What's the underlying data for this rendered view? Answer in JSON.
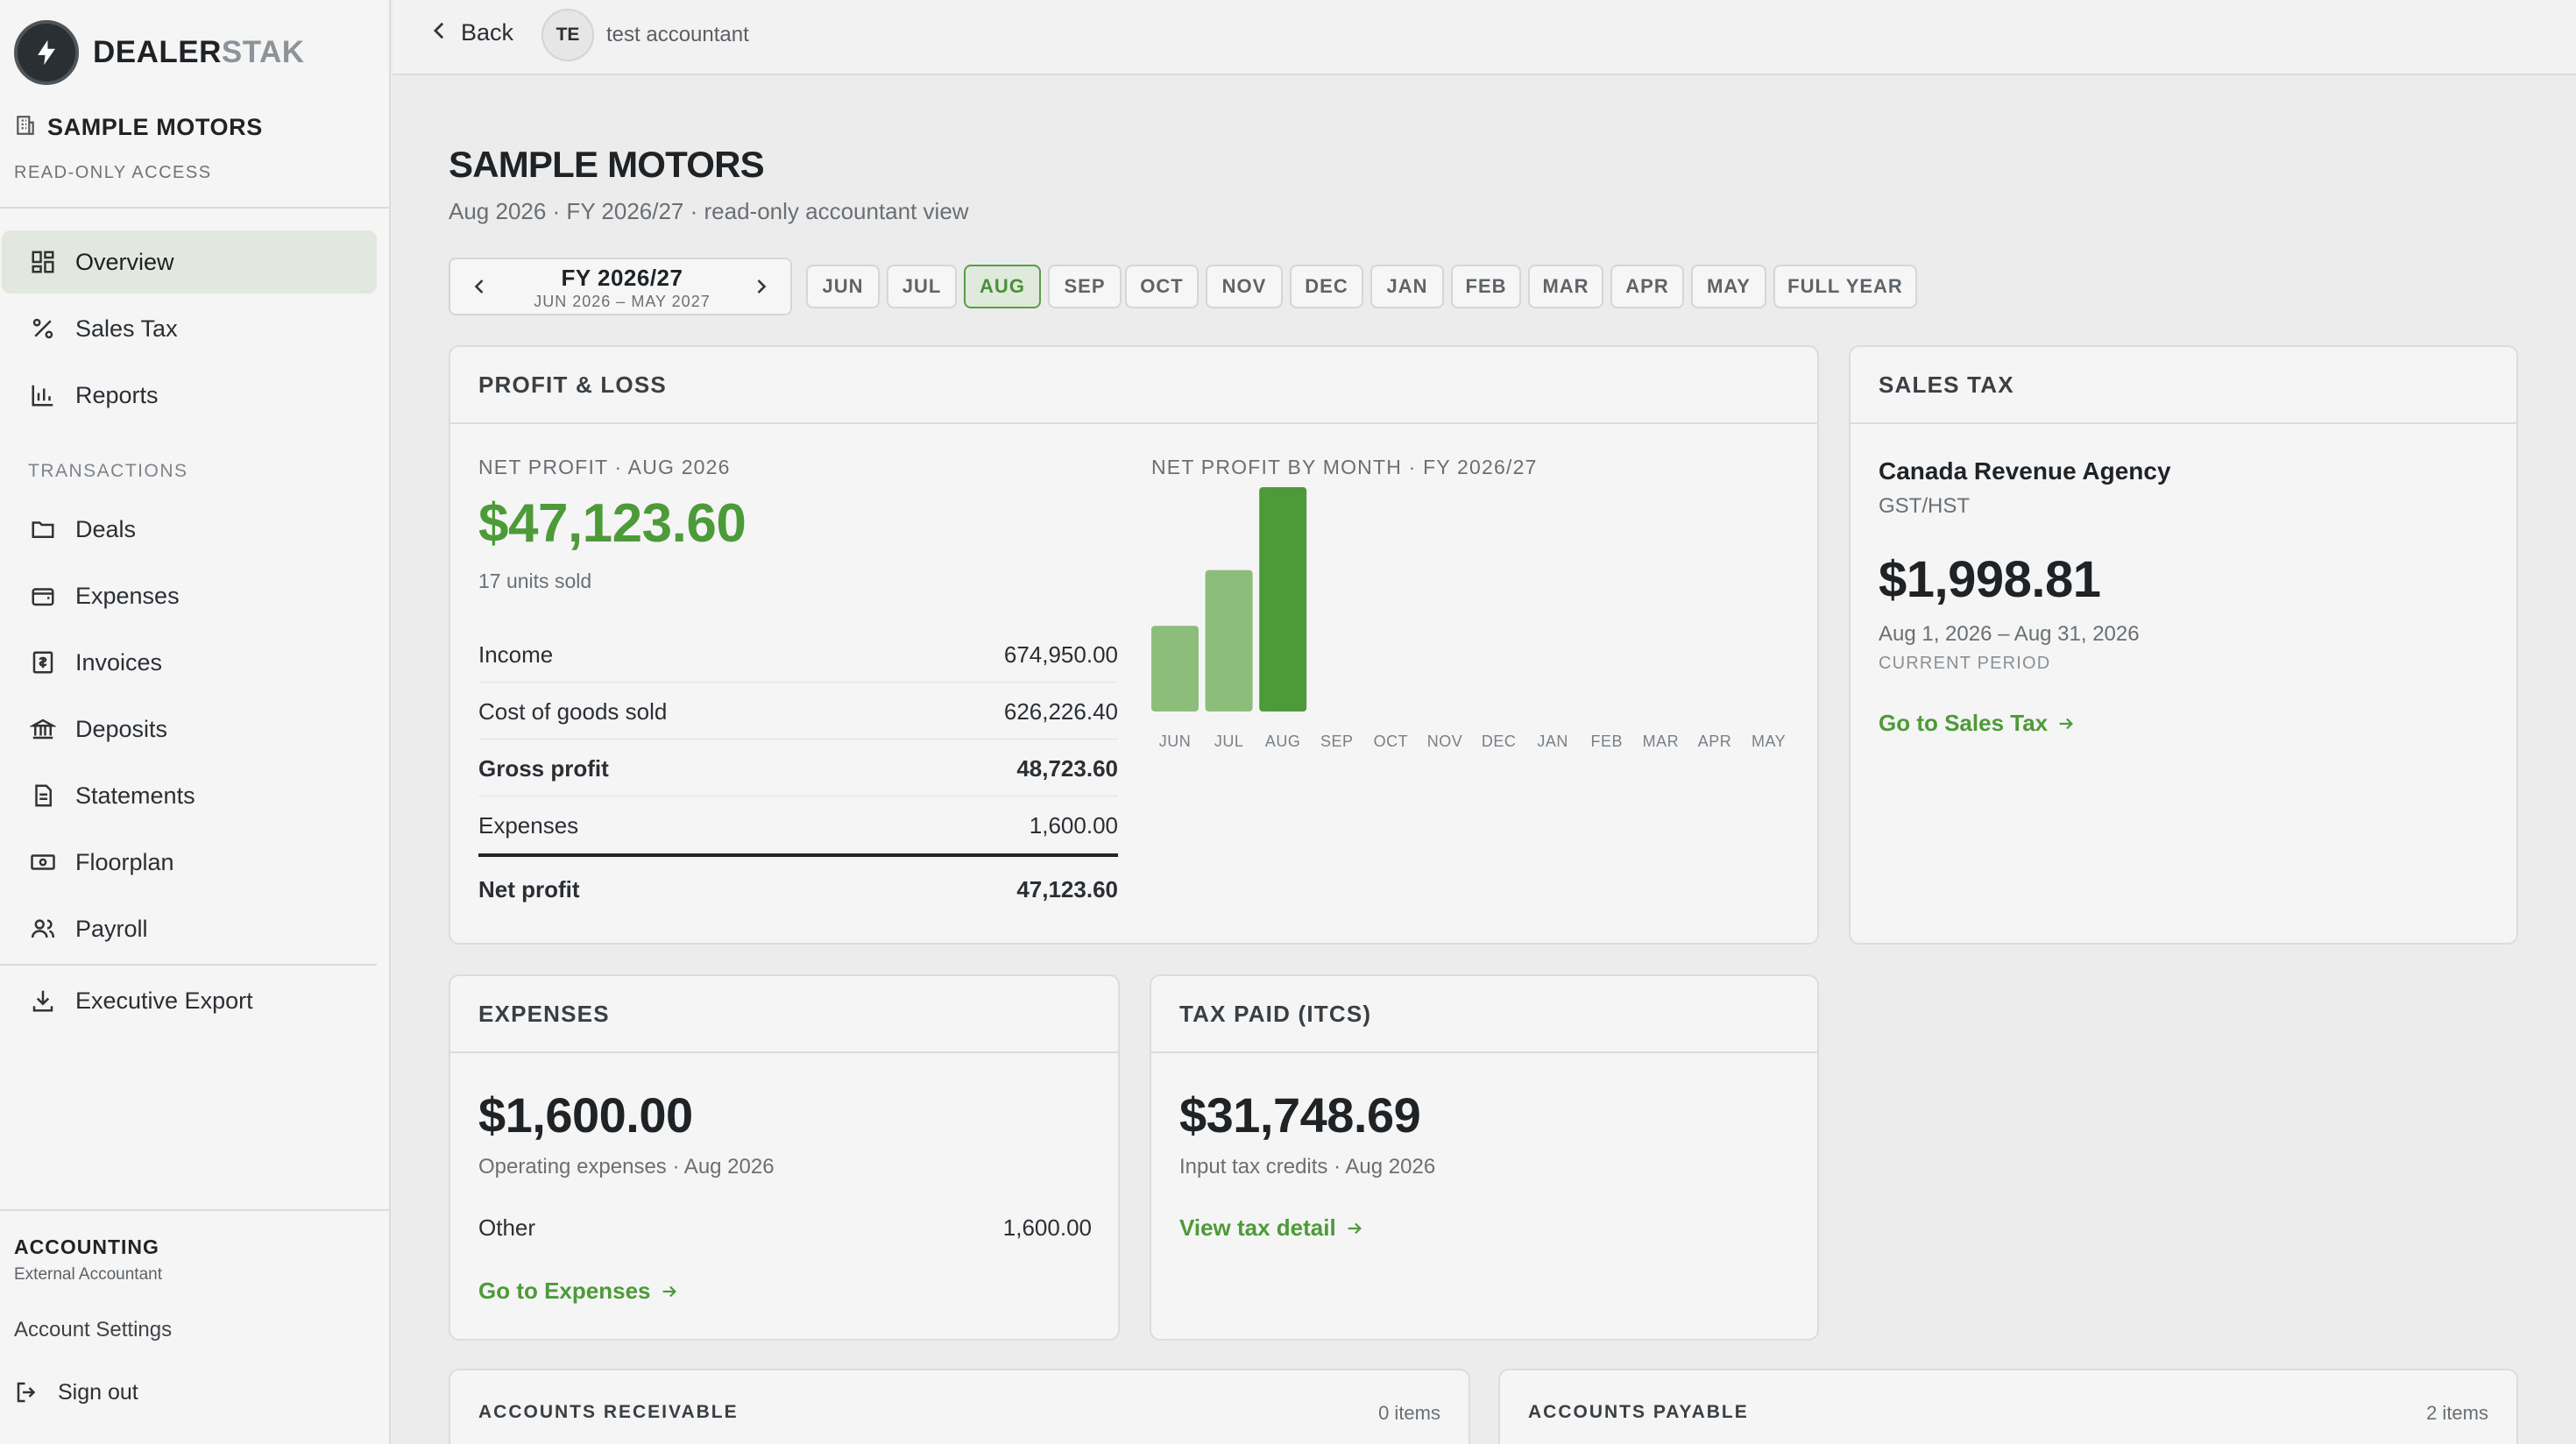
{
  "brand": {
    "part1": "DEALER",
    "part2": "STAK"
  },
  "org": {
    "name": "SAMPLE MOTORS",
    "access": "READ-ONLY ACCESS"
  },
  "nav": {
    "overview": "Overview",
    "sales_tax": "Sales Tax",
    "reports": "Reports",
    "section": "TRANSACTIONS",
    "deals": "Deals",
    "expenses": "Expenses",
    "invoices": "Invoices",
    "deposits": "Deposits",
    "statements": "Statements",
    "floorplan": "Floorplan",
    "payroll": "Payroll",
    "export": "Executive Export"
  },
  "account": {
    "title": "ACCOUNTING",
    "role": "External Accountant",
    "settings": "Account Settings",
    "signout": "Sign out"
  },
  "topbar": {
    "back": "Back",
    "initials": "TE",
    "user": "test accountant"
  },
  "page": {
    "title": "SAMPLE MOTORS",
    "subtitle": "Aug 2026 · FY 2026/27 · read-only accountant view"
  },
  "period": {
    "fy_label": "FY 2026/27",
    "fy_range": "JUN 2026 – MAY 2027",
    "months": [
      "JUN",
      "JUL",
      "AUG",
      "SEP",
      "OCT",
      "NOV",
      "DEC",
      "JAN",
      "FEB",
      "MAR",
      "APR",
      "MAY",
      "FULL YEAR"
    ],
    "selected": "AUG"
  },
  "pl": {
    "header": "PROFIT & LOSS",
    "net_label": "NET PROFIT · AUG 2026",
    "net_value": "$47,123.60",
    "units": "17 units sold",
    "rows": [
      {
        "label": "Income",
        "value": "674,950.00"
      },
      {
        "label": "Cost of goods sold",
        "value": "626,226.40"
      },
      {
        "label": "Gross profit",
        "value": "48,723.60"
      },
      {
        "label": "Expenses",
        "value": "1,600.00"
      },
      {
        "label": "Net profit",
        "value": "47,123.60"
      }
    ],
    "chart_title": "NET PROFIT BY MONTH · FY 2026/27"
  },
  "chart_data": {
    "type": "bar",
    "title": "NET PROFIT BY MONTH · FY 2026/27",
    "categories": [
      "JUN",
      "JUL",
      "AUG",
      "SEP",
      "OCT",
      "NOV",
      "DEC",
      "JAN",
      "FEB",
      "MAR",
      "APR",
      "MAY"
    ],
    "values": [
      18000,
      29700,
      47123.6,
      0,
      0,
      0,
      0,
      0,
      0,
      0,
      0,
      0
    ],
    "highlight": "AUG",
    "colors": {
      "bar": "#8cbd7a",
      "highlight": "#4c9a38"
    },
    "grid": false
  },
  "sales_tax": {
    "header": "SALES TAX",
    "agency": "Canada Revenue Agency",
    "type": "GST/HST",
    "amount": "$1,998.81",
    "period": "Aug 1, 2026 – Aug 31, 2026",
    "period_label": "CURRENT PERIOD",
    "link": "Go to Sales Tax"
  },
  "expenses": {
    "header": "EXPENSES",
    "amount": "$1,600.00",
    "caption": "Operating expenses · Aug 2026",
    "row_label": "Other",
    "row_value": "1,600.00",
    "link": "Go to Expenses"
  },
  "tax_paid": {
    "header": "TAX PAID (ITCS)",
    "amount": "$31,748.69",
    "caption": "Input tax credits · Aug 2026",
    "link": "View tax detail"
  },
  "ar": {
    "header": "ACCOUNTS RECEIVABLE",
    "count": "0 items"
  },
  "ap": {
    "header": "ACCOUNTS PAYABLE",
    "count": "2 items"
  },
  "colors": {
    "accent": "#4c9a38",
    "accent_light": "#8cbd7a",
    "active_bg": "#e2e8e0"
  }
}
